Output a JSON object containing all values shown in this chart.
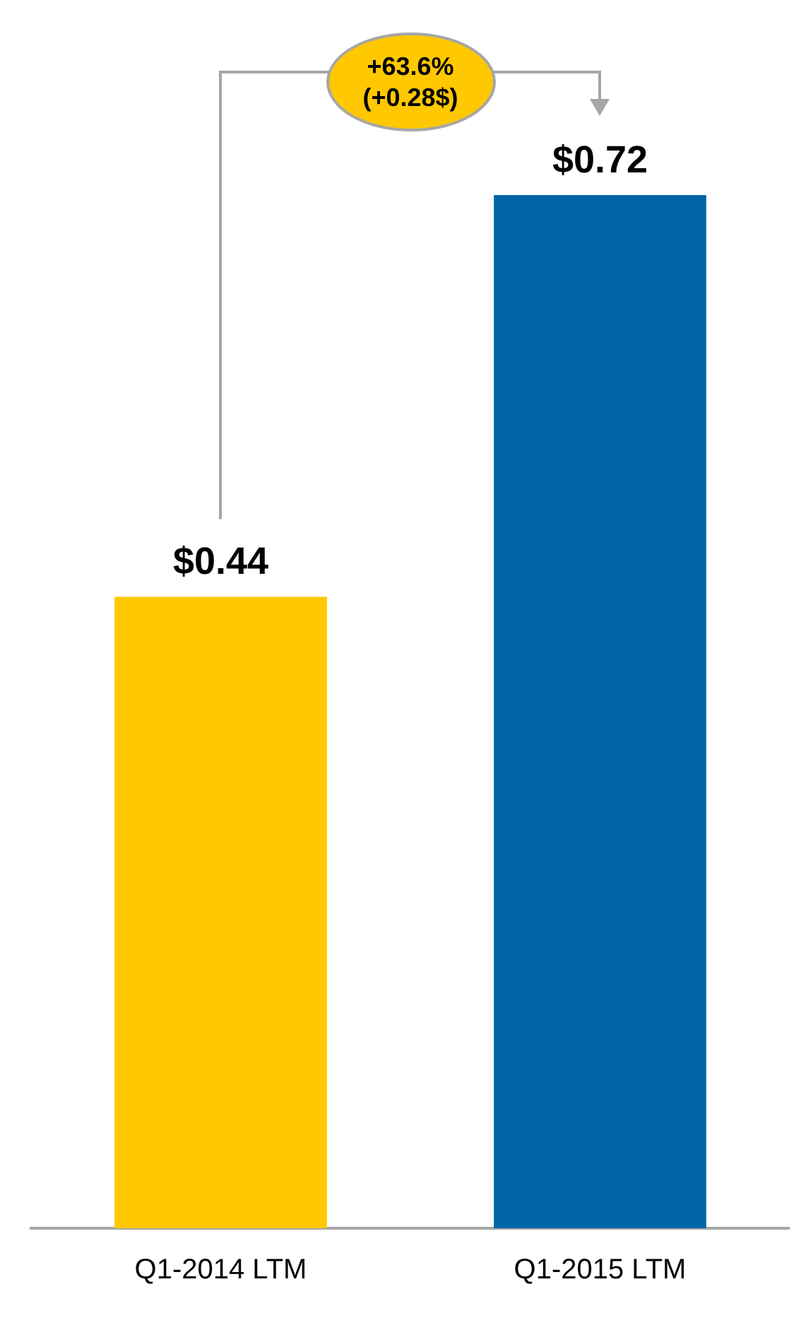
{
  "chart_data": {
    "type": "bar",
    "categories": [
      "Q1-2014 LTM",
      "Q1-2015 LTM"
    ],
    "values": [
      0.44,
      0.72
    ],
    "colors": [
      "#ffc800",
      "#0066a8"
    ],
    "value_labels": [
      "$0.44",
      "$0.72"
    ],
    "annotations": [
      "+63.6%\n(+0.28$)"
    ],
    "tick_labels": "x",
    "grid": false,
    "legend": false
  }
}
